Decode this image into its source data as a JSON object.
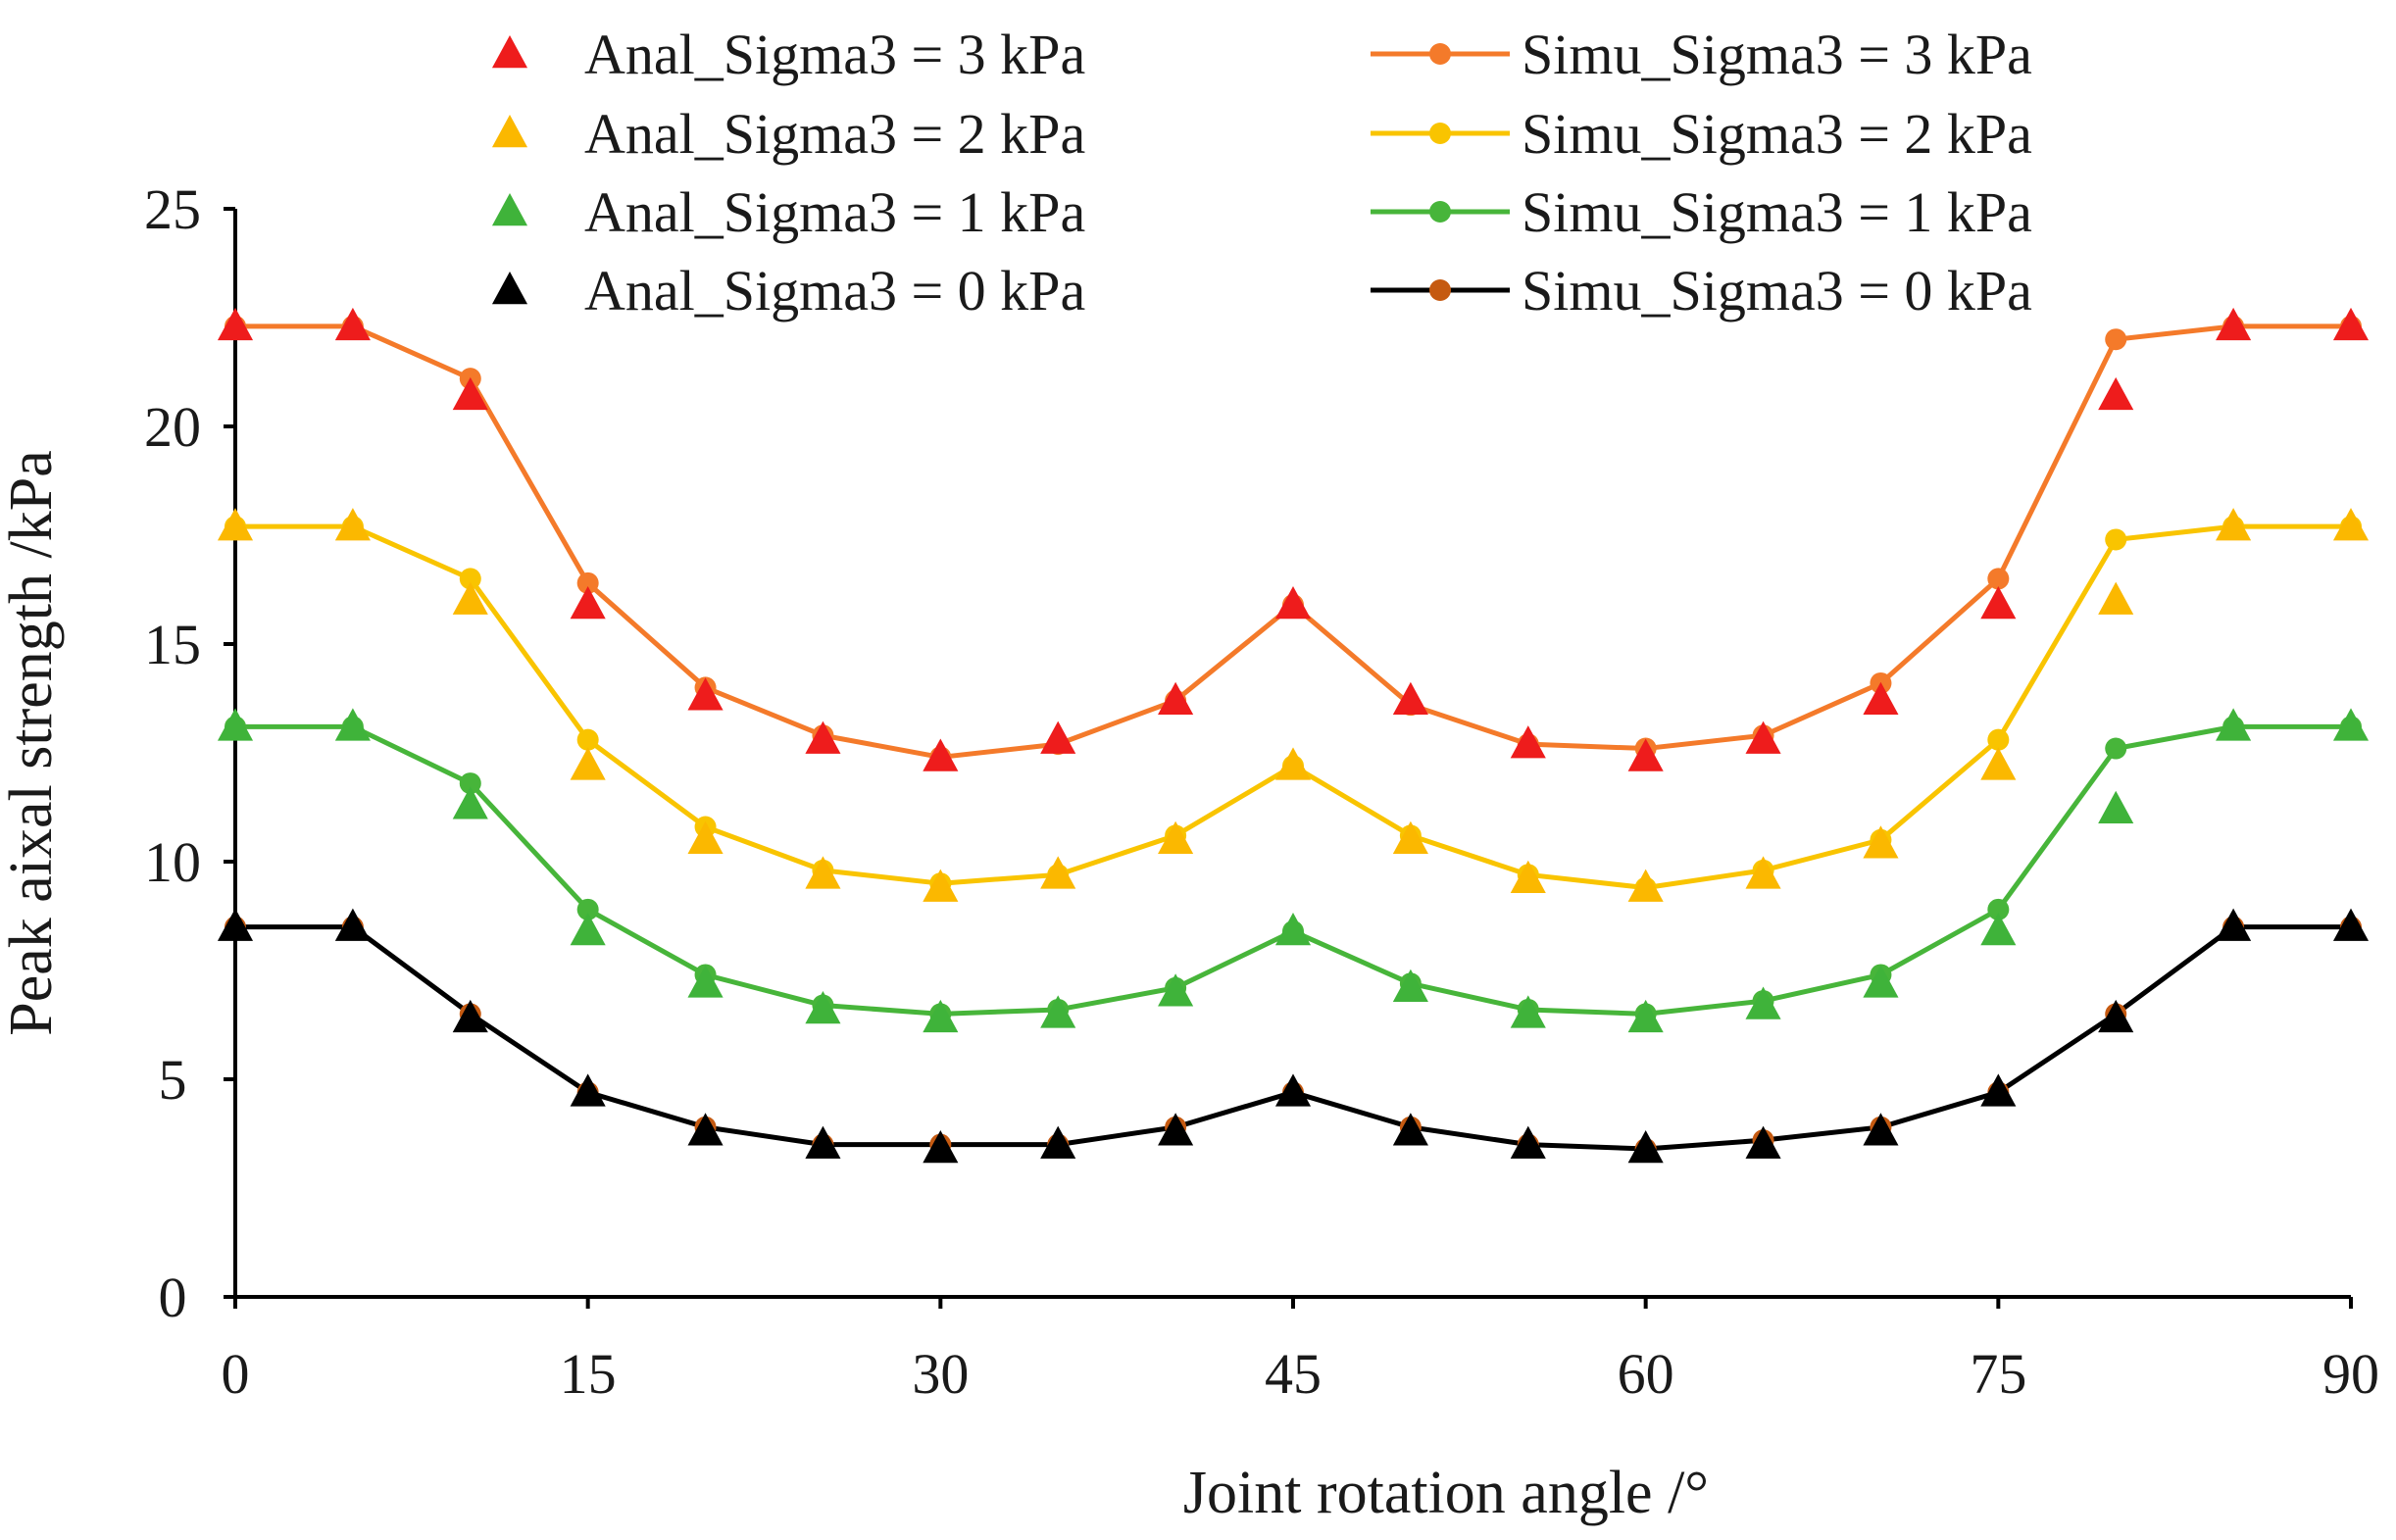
{
  "chart_data": {
    "type": "line",
    "title": "",
    "xlabel": "Joint rotation angle /°",
    "ylabel": "Peak aixal strength /kPa",
    "xlim": [
      0,
      90
    ],
    "ylim": [
      0,
      25
    ],
    "xticks": [
      0,
      15,
      30,
      45,
      60,
      75,
      90
    ],
    "yticks": [
      0,
      5,
      10,
      15,
      20,
      25
    ],
    "x": [
      0,
      5,
      10,
      15,
      20,
      25,
      30,
      35,
      40,
      45,
      50,
      55,
      60,
      65,
      70,
      75,
      80,
      85,
      90
    ],
    "legend_position": "top",
    "series": [
      {
        "name": "Anal_Sigma3 = 3 kPa",
        "kind": "marker",
        "marker": "triangle",
        "color": "#ee1c1c",
        "values": [
          22.3,
          22.3,
          20.7,
          15.9,
          13.8,
          12.8,
          12.4,
          12.8,
          13.7,
          15.9,
          13.7,
          12.7,
          12.4,
          12.8,
          13.7,
          15.9,
          20.7,
          22.3,
          22.3
        ]
      },
      {
        "name": "Anal_Sigma3 = 2 kPa",
        "kind": "marker",
        "marker": "triangle",
        "color": "#fbb800",
        "values": [
          17.7,
          17.7,
          16.0,
          12.2,
          10.5,
          9.7,
          9.4,
          9.7,
          10.5,
          12.2,
          10.5,
          9.6,
          9.4,
          9.7,
          10.4,
          12.2,
          16.0,
          17.7,
          17.7
        ]
      },
      {
        "name": "Anal_Sigma3 = 1 kPa",
        "kind": "marker",
        "marker": "triangle",
        "color": "#3fb33a",
        "values": [
          13.1,
          13.1,
          11.3,
          8.4,
          7.2,
          6.6,
          6.4,
          6.5,
          7.0,
          8.4,
          7.1,
          6.5,
          6.4,
          6.7,
          7.2,
          8.4,
          11.2,
          13.1,
          13.1
        ]
      },
      {
        "name": "Anal_Sigma3 = 0 kPa",
        "kind": "marker",
        "marker": "triangle",
        "color": "#000000",
        "values": [
          8.5,
          8.5,
          6.4,
          4.7,
          3.8,
          3.5,
          3.4,
          3.5,
          3.8,
          4.7,
          3.8,
          3.5,
          3.4,
          3.5,
          3.8,
          4.7,
          6.4,
          8.5,
          8.5
        ]
      },
      {
        "name": "Simu_Sigma3 = 3 kPa",
        "kind": "line",
        "marker": "circle",
        "color": "#f47a2a",
        "values": [
          22.3,
          22.3,
          21.1,
          16.4,
          14.0,
          12.9,
          12.4,
          12.7,
          13.7,
          15.9,
          13.6,
          12.7,
          12.6,
          12.9,
          14.1,
          16.5,
          22.0,
          22.3,
          22.3
        ]
      },
      {
        "name": "Simu_Sigma3 = 2 kPa",
        "kind": "line",
        "marker": "circle",
        "color": "#f9c400",
        "values": [
          17.7,
          17.7,
          16.5,
          12.8,
          10.8,
          9.8,
          9.5,
          9.7,
          10.6,
          12.2,
          10.6,
          9.7,
          9.4,
          9.8,
          10.5,
          12.8,
          17.4,
          17.7,
          17.7
        ]
      },
      {
        "name": "Simu_Sigma3 = 1 kPa",
        "kind": "line",
        "marker": "circle",
        "color": "#47b53a",
        "values": [
          13.1,
          13.1,
          11.8,
          8.9,
          7.4,
          6.7,
          6.5,
          6.6,
          7.1,
          8.4,
          7.2,
          6.6,
          6.5,
          6.8,
          7.4,
          8.9,
          12.6,
          13.1,
          13.1
        ]
      },
      {
        "name": "Simu_Sigma3 = 0 kPa",
        "kind": "line",
        "marker": "circle",
        "color": "#000000",
        "marker_color": "#c55a11",
        "values": [
          8.5,
          8.5,
          6.5,
          4.7,
          3.9,
          3.5,
          3.5,
          3.5,
          3.9,
          4.7,
          3.9,
          3.5,
          3.4,
          3.6,
          3.9,
          4.7,
          6.5,
          8.5,
          8.5
        ]
      }
    ]
  }
}
